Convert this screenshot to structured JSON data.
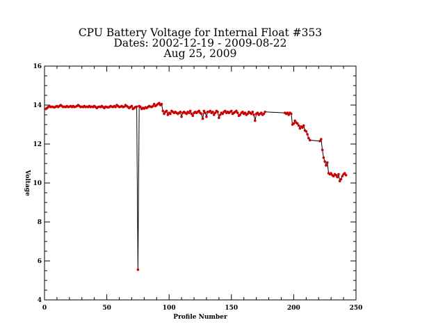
{
  "chart_data": {
    "type": "line",
    "title_lines": [
      "CPU Battery Voltage for Internal Float #353",
      "Dates:  2002-12-19 -  2009-08-22",
      "Aug 25, 2009"
    ],
    "xlabel": "Profile Number",
    "ylabel": "Voltage",
    "xlim": [
      0,
      250
    ],
    "ylim": [
      4,
      16
    ],
    "x_ticks": [
      0,
      50,
      100,
      150,
      200,
      250
    ],
    "y_ticks": [
      4,
      6,
      8,
      10,
      12,
      14,
      16
    ],
    "x_minor_step": 10,
    "y_minor_step": 0.5,
    "grid": false,
    "line_color": "#000000",
    "marker_color": "#cc0000",
    "series": [
      {
        "x": [
          1,
          2,
          3,
          4,
          5,
          6,
          7,
          8,
          9,
          10,
          11,
          12,
          13,
          14,
          15,
          16,
          17,
          18,
          19,
          20,
          21,
          22,
          23,
          24,
          25,
          26,
          27,
          28,
          29,
          30,
          31,
          32,
          33,
          34,
          35,
          36,
          37,
          38,
          39,
          40,
          41,
          42,
          43,
          44,
          45,
          46,
          47,
          48,
          49,
          50,
          51,
          52,
          53,
          54,
          55,
          56,
          57,
          58,
          59,
          60,
          61,
          62,
          63,
          64,
          65,
          66,
          67,
          68,
          69,
          70,
          71,
          72,
          73,
          74,
          75,
          76,
          77,
          78,
          79,
          80,
          81,
          82,
          83,
          84,
          85,
          86,
          87,
          88,
          89,
          90,
          91,
          92,
          93,
          94,
          95,
          96,
          97,
          98,
          99,
          100,
          101,
          102,
          103,
          104,
          105,
          106,
          107,
          108,
          109,
          110,
          111,
          112,
          113,
          114,
          115,
          116,
          117,
          118,
          119,
          120,
          121,
          122,
          123,
          124,
          125,
          126,
          127,
          128,
          129,
          130,
          131,
          132,
          133,
          134,
          135,
          136,
          137,
          138,
          139,
          140,
          141,
          142,
          143,
          144,
          145,
          146,
          147,
          148,
          149,
          150,
          151,
          152,
          153,
          154,
          155,
          156,
          157,
          158,
          159,
          160,
          161,
          162,
          163,
          164,
          165,
          166,
          167,
          168,
          169,
          170,
          171,
          172,
          173,
          174,
          175,
          176,
          177,
          193,
          194,
          195,
          196,
          197,
          198,
          199,
          200,
          201,
          202,
          203,
          204,
          205,
          206,
          207,
          208,
          209,
          210,
          211,
          212,
          213,
          221,
          222,
          223,
          224,
          225,
          226,
          227,
          228,
          229,
          230,
          231,
          232,
          233,
          234,
          235,
          236,
          237,
          238,
          239,
          240,
          241,
          242
        ],
        "y": [
          13.8,
          13.85,
          13.9,
          13.95,
          13.9,
          13.92,
          13.9,
          13.88,
          13.92,
          13.95,
          13.9,
          13.95,
          14.0,
          13.95,
          13.9,
          13.92,
          13.9,
          13.95,
          13.9,
          13.92,
          13.95,
          13.9,
          13.95,
          13.9,
          13.92,
          13.95,
          14.0,
          13.95,
          13.9,
          13.92,
          13.9,
          13.95,
          13.9,
          13.92,
          13.9,
          13.95,
          13.9,
          13.92,
          13.9,
          13.95,
          13.9,
          13.85,
          13.9,
          13.92,
          13.9,
          13.95,
          13.9,
          13.85,
          13.92,
          13.9,
          13.88,
          13.9,
          13.95,
          13.92,
          13.9,
          13.95,
          13.9,
          14.0,
          13.95,
          13.9,
          13.92,
          13.95,
          13.9,
          13.92,
          14.0,
          13.95,
          13.9,
          13.85,
          13.9,
          13.95,
          13.8,
          13.85,
          13.9,
          13.92,
          5.55,
          13.95,
          13.9,
          13.8,
          13.85,
          13.82,
          13.88,
          13.85,
          13.9,
          13.95,
          13.92,
          13.9,
          13.95,
          14.05,
          13.95,
          14.0,
          14.05,
          14.1,
          14.0,
          14.05,
          13.7,
          13.55,
          13.65,
          13.7,
          13.5,
          13.6,
          13.55,
          13.7,
          13.65,
          13.6,
          13.65,
          13.6,
          13.55,
          13.6,
          13.65,
          13.4,
          13.6,
          13.65,
          13.6,
          13.55,
          13.65,
          13.6,
          13.7,
          13.55,
          13.45,
          13.6,
          13.65,
          13.6,
          13.65,
          13.7,
          13.6,
          13.55,
          13.3,
          13.7,
          13.6,
          13.4,
          13.65,
          13.65,
          13.7,
          13.6,
          13.65,
          13.5,
          13.6,
          13.7,
          13.65,
          13.35,
          13.5,
          13.6,
          13.55,
          13.65,
          13.7,
          13.6,
          13.65,
          13.6,
          13.65,
          13.7,
          13.55,
          13.6,
          13.65,
          13.7,
          13.6,
          13.45,
          13.5,
          13.6,
          13.65,
          13.55,
          13.6,
          13.5,
          13.55,
          13.65,
          13.6,
          13.55,
          13.65,
          13.5,
          13.2,
          13.55,
          13.6,
          13.5,
          13.55,
          13.6,
          13.5,
          13.55,
          13.65,
          13.6,
          13.55,
          13.6,
          13.5,
          13.6,
          13.55,
          13.0,
          13.05,
          13.2,
          13.1,
          13.05,
          12.95,
          12.8,
          12.9,
          12.85,
          12.95,
          12.7,
          12.65,
          12.5,
          12.3,
          12.2,
          12.15,
          12.25,
          11.7,
          11.3,
          11.1,
          10.9,
          11.05,
          10.5,
          10.45,
          10.5,
          10.4,
          10.35,
          10.45,
          10.4,
          10.3,
          10.45,
          10.1,
          10.2,
          10.35,
          10.45,
          10.5,
          10.4
        ]
      }
    ]
  }
}
